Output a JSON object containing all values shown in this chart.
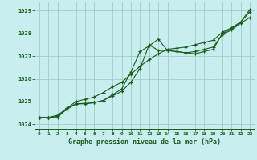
{
  "xlabel": "Graphe pression niveau de la mer (hPa)",
  "bg_color": "#c8eef0",
  "grid_color": "#98c8b8",
  "line_color": "#1a5c1a",
  "ylim": [
    1023.8,
    1029.4
  ],
  "xlim": [
    -0.5,
    23.5
  ],
  "yticks": [
    1024,
    1025,
    1026,
    1027,
    1028,
    1029
  ],
  "xticks": [
    0,
    1,
    2,
    3,
    4,
    5,
    6,
    7,
    8,
    9,
    10,
    11,
    12,
    13,
    14,
    15,
    16,
    17,
    18,
    19,
    20,
    21,
    22,
    23
  ],
  "line1": [
    1024.3,
    1024.3,
    1024.3,
    1024.7,
    1024.9,
    1024.9,
    1024.95,
    1025.05,
    1025.3,
    1025.55,
    1026.3,
    1027.2,
    1027.45,
    1027.75,
    1027.25,
    1027.2,
    1027.15,
    1027.1,
    1027.2,
    1027.3,
    1028.0,
    1028.2,
    1028.5,
    1029.05
  ],
  "line2": [
    1024.3,
    1024.3,
    1024.35,
    1024.65,
    1024.9,
    1024.92,
    1024.95,
    1025.05,
    1025.25,
    1025.45,
    1025.85,
    1026.45,
    1027.5,
    1027.25,
    1027.25,
    1027.2,
    1027.15,
    1027.2,
    1027.3,
    1027.4,
    1027.95,
    1028.15,
    1028.45,
    1028.7
  ],
  "line3": [
    1024.3,
    1024.3,
    1024.4,
    1024.7,
    1025.0,
    1025.1,
    1025.2,
    1025.4,
    1025.65,
    1025.85,
    1026.2,
    1026.55,
    1026.85,
    1027.1,
    1027.3,
    1027.35,
    1027.4,
    1027.5,
    1027.6,
    1027.7,
    1028.05,
    1028.25,
    1028.5,
    1028.95
  ]
}
